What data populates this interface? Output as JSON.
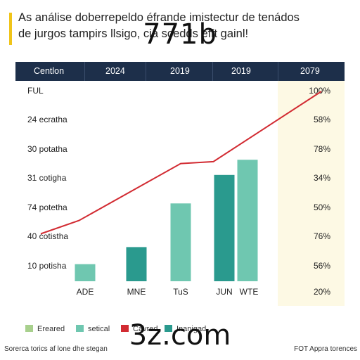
{
  "title_lines": [
    "As análise doberrepeldo éfrande imistectur de tenádos",
    "de jurgos tampirs llsigo, cia scedds efft gainl!"
  ],
  "overlay_text": "771b",
  "overlay_bottom_text": "3z.com",
  "colors": {
    "header_bg": "#1d2f4a",
    "accent": "#f0c419",
    "bar_light": "#6fc7b0",
    "bar_dark": "#2a9a8e",
    "line": "#d22b32",
    "yellow_column": "#fdf9e4",
    "legend_light_green": "#a8d08d"
  },
  "header": {
    "label": "Centlon",
    "years": [
      "2024",
      "2019",
      "2019",
      "2079"
    ]
  },
  "rows": [
    "FUL",
    "24 ecratha",
    "30 potatha",
    "31 cotigha",
    "74 potetha",
    "40 cotistha",
    "10 potisha"
  ],
  "right_column": [
    "100%",
    "58%",
    "78%",
    "34%",
    "50%",
    "76%",
    "56%",
    "20%"
  ],
  "legend": [
    "Ereared",
    "setical",
    "Cavred",
    "Inanigad"
  ],
  "footer_left": "Sorerca torics af lone dhe stegan",
  "footer_right": "FOT Appra torences",
  "chart_data": {
    "type": "bar",
    "categories": [
      "ADE",
      "MNE",
      "TuS",
      "JUN",
      "WTE"
    ],
    "series": [
      {
        "name": "setical",
        "values": [
          9,
          18,
          41,
          56,
          64
        ],
        "colors": [
          "#6fc7b0",
          "#2a9a8e",
          "#6fc7b0",
          "#2a9a8e",
          "#6fc7b0"
        ]
      }
    ],
    "line_series": {
      "x": [
        0,
        0.4,
        2,
        2.75,
        4.6
      ],
      "values": [
        25,
        32,
        62,
        63,
        100
      ],
      "color": "#d22b32"
    },
    "ylim": [
      0,
      100
    ],
    "grid": false,
    "legend_position": "bottom-left"
  }
}
